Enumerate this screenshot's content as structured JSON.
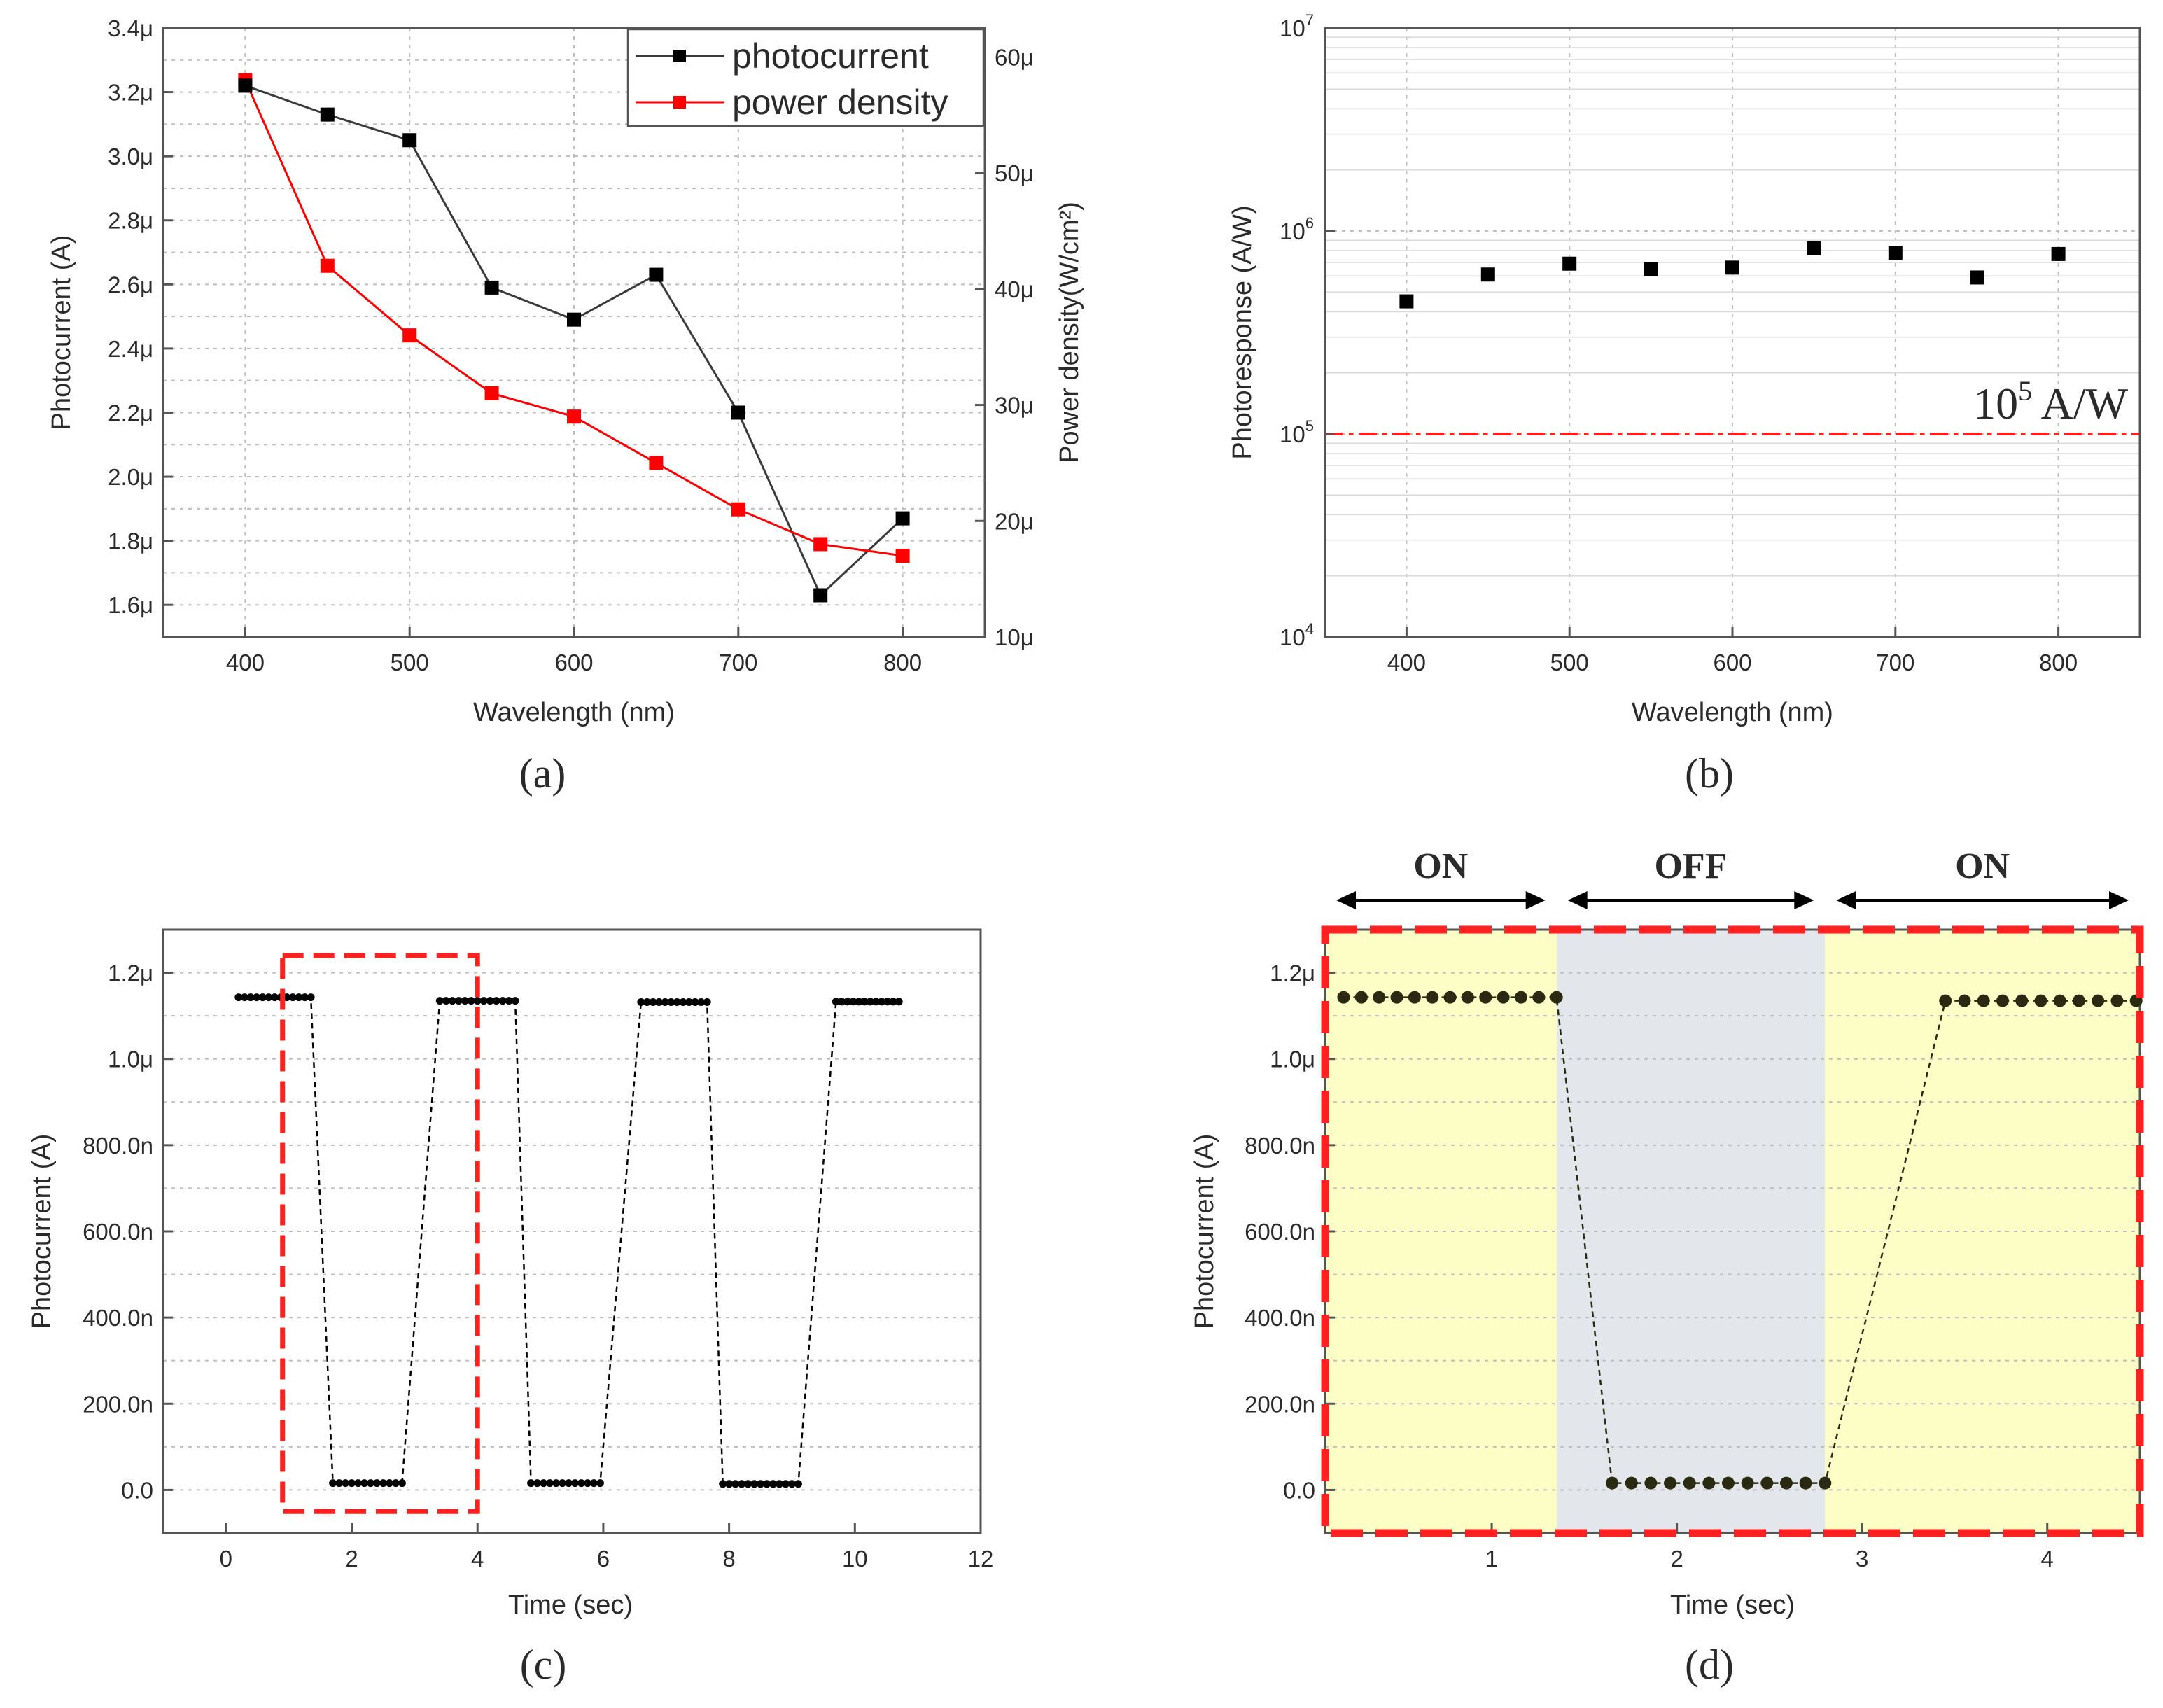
{
  "chart_data": [
    {
      "id": "a",
      "type": "line",
      "caption": "(a)",
      "xlabel": "Wavelength (nm)",
      "ylabel": "Photocurrent (A)",
      "y2label": "Power density(W/cm²)",
      "xlim": [
        350,
        850
      ],
      "ylim": [
        1.5,
        3.4
      ],
      "y2lim": [
        10,
        62.5
      ],
      "xticks": [
        400,
        500,
        600,
        700,
        800
      ],
      "yticks": [
        1.6,
        1.8,
        2.0,
        2.2,
        2.4,
        2.6,
        2.8,
        3.0,
        3.2,
        3.4
      ],
      "ytick_labels": [
        "1.6μ",
        "1.8μ",
        "2.0μ",
        "2.2μ",
        "2.4μ",
        "2.6μ",
        "2.8μ",
        "3.0μ",
        "3.2μ",
        "3.4μ"
      ],
      "y2ticks": [
        10,
        20,
        30,
        40,
        50,
        60
      ],
      "y2tick_labels": [
        "10μ",
        "20μ",
        "30μ",
        "40μ",
        "50μ",
        "60μ"
      ],
      "legend_position": "top-right",
      "series": [
        {
          "name": "photocurrent",
          "axis": "left",
          "color": "#3a3a3a",
          "marker_color": "#000000",
          "x": [
            400,
            450,
            500,
            550,
            600,
            650,
            700,
            750,
            800
          ],
          "values": [
            3.22,
            3.13,
            3.05,
            2.59,
            2.49,
            2.63,
            2.2,
            1.63,
            1.87
          ]
        },
        {
          "name": "power density",
          "axis": "right",
          "color": "#ff0000",
          "marker_color": "#ff0000",
          "x": [
            400,
            450,
            500,
            550,
            600,
            650,
            700,
            750,
            800
          ],
          "values": [
            58,
            42,
            36,
            31,
            29,
            25,
            21,
            18,
            17
          ]
        }
      ]
    },
    {
      "id": "b",
      "type": "scatter",
      "caption": "(b)",
      "xlabel": "Wavelength (nm)",
      "ylabel": "Photoresponse (A/W)",
      "xlim": [
        350,
        850
      ],
      "ylim": [
        10000,
        10000000
      ],
      "yscale": "log",
      "xticks": [
        400,
        500,
        600,
        700,
        800
      ],
      "yticks_exp": [
        "4",
        "5",
        "6",
        "7"
      ],
      "series": [
        {
          "name": "photoresponse",
          "color": "#000000",
          "x": [
            400,
            450,
            500,
            550,
            600,
            650,
            700,
            750,
            800
          ],
          "values": [
            450000,
            610000,
            690000,
            650000,
            660000,
            820000,
            780000,
            590000,
            770000
          ]
        }
      ],
      "reference_line": {
        "value": 100000,
        "color": "#ff2020",
        "label_base": "10",
        "label_exp": "5",
        "label_unit": " A/W"
      }
    },
    {
      "id": "c",
      "type": "line",
      "caption": "(c)",
      "xlabel": "Time (sec)",
      "ylabel": "Photocurrent (A)",
      "xlim": [
        -1,
        12
      ],
      "ylim": [
        -0.1,
        1.3
      ],
      "xticks": [
        0,
        2,
        4,
        6,
        8,
        10,
        12
      ],
      "yticks": [
        0,
        0.2,
        0.4,
        0.6,
        0.8,
        1.0,
        1.2
      ],
      "ytick_labels": [
        "0.0",
        "200.0n",
        "400.0n",
        "600.0n",
        "800.0n",
        "1.0μ",
        "1.2μ"
      ],
      "highlight_box": {
        "x": [
          0.9,
          4.0
        ],
        "y": [
          -0.05,
          1.24
        ],
        "color": "#ff2020"
      },
      "series": [
        {
          "name": "photocurrent",
          "color": "#000000",
          "segments": [
            {
              "x_start": 0.2,
              "x_end": 1.35,
              "y": 1.143,
              "n": 13
            },
            {
              "x_start": 1.7,
              "x_end": 2.8,
              "y": 0.016,
              "n": 12
            },
            {
              "x_start": 3.4,
              "x_end": 4.6,
              "y": 1.135,
              "n": 13
            },
            {
              "x_start": 4.85,
              "x_end": 5.95,
              "y": 0.016,
              "n": 12
            },
            {
              "x_start": 6.6,
              "x_end": 7.65,
              "y": 1.132,
              "n": 12
            },
            {
              "x_start": 7.9,
              "x_end": 9.1,
              "y": 0.014,
              "n": 13
            },
            {
              "x_start": 9.7,
              "x_end": 10.7,
              "y": 1.133,
              "n": 12
            }
          ]
        }
      ]
    },
    {
      "id": "d",
      "type": "line",
      "caption": "(d)",
      "xlabel": "Time (sec)",
      "ylabel": "Photocurrent (A)",
      "xlim": [
        0.1,
        4.5
      ],
      "ylim": [
        -0.1,
        1.3
      ],
      "xticks": [
        1,
        2,
        3,
        4
      ],
      "yticks": [
        0,
        0.2,
        0.4,
        0.6,
        0.8,
        1.0,
        1.2
      ],
      "ytick_labels": [
        "0.0",
        "200.0n",
        "400.0n",
        "600.0n",
        "800.0n",
        "1.0μ",
        "1.2μ"
      ],
      "phases": [
        {
          "label": "ON",
          "x_start": 0.1,
          "x_end": 1.35,
          "color": "#fdfdc6"
        },
        {
          "label": "OFF",
          "x_start": 1.35,
          "x_end": 2.8,
          "color": "#e3e6ea"
        },
        {
          "label": "ON",
          "x_start": 2.8,
          "x_end": 4.5,
          "color": "#fdfdc6"
        }
      ],
      "border_color": "#ff2020",
      "series": [
        {
          "name": "photocurrent",
          "color": "#2a2a12",
          "segments": [
            {
              "x_start": 0.2,
              "x_end": 1.35,
              "y": 1.143,
              "n": 13
            },
            {
              "x_start": 1.65,
              "x_end": 2.8,
              "y": 0.016,
              "n": 12
            },
            {
              "x_start": 3.45,
              "x_end": 4.48,
              "y": 1.135,
              "n": 11
            }
          ]
        }
      ]
    }
  ]
}
